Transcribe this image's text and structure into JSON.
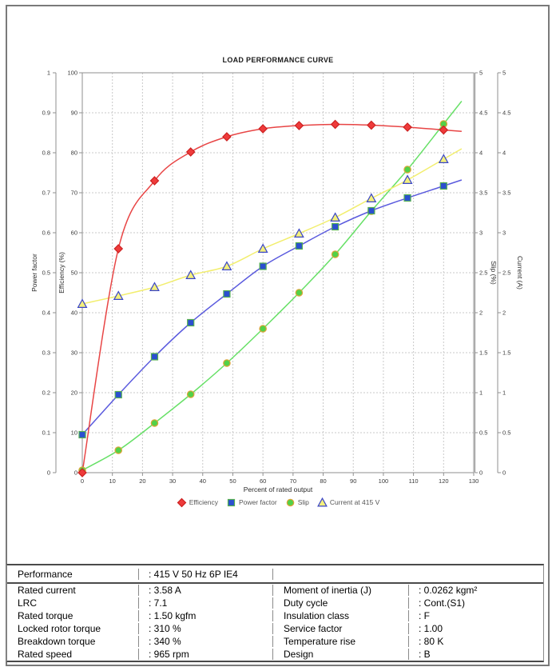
{
  "chart": {
    "title": "LOAD PERFORMANCE CURVE",
    "x_axis": {
      "label": "Percent of rated output",
      "min": 0,
      "max": 130,
      "tick_step": 10
    },
    "y_axes": {
      "power_factor": {
        "label": "Power factor",
        "min": 0,
        "max": 1,
        "tick_step": 0.1,
        "side": "outer-left"
      },
      "efficiency": {
        "label": "Efficiency (%)",
        "min": 0,
        "max": 100,
        "tick_step": 10,
        "side": "left"
      },
      "slip": {
        "label": "Slip (%)",
        "min": 0,
        "max": 5,
        "tick_step": 0.5,
        "side": "right"
      },
      "current": {
        "label": "Current (A)",
        "min": 0,
        "max": 5,
        "tick_step": 0.5,
        "side": "outer-right"
      }
    },
    "grid": "dashed",
    "legend_position": "bottom-center"
  },
  "chart_data": {
    "type": "line",
    "title": "LOAD PERFORMANCE CURVE",
    "xlabel": "Percent of rated output",
    "xlim": [
      0,
      130
    ],
    "x": [
      0,
      12,
      24,
      36,
      48,
      60,
      72,
      84,
      96,
      108,
      120
    ],
    "series": [
      {
        "name": "Efficiency",
        "axis": "efficiency",
        "axis_max": 100,
        "marker": "diamond",
        "line_color": "#e84545",
        "marker_fill": "#ee3b3b",
        "marker_stroke": "#cc2020",
        "values": [
          0,
          56,
          73,
          80.2,
          84,
          86,
          86.8,
          87.1,
          86.9,
          86.4,
          85.7
        ]
      },
      {
        "name": "Power factor",
        "axis": "power_factor",
        "axis_max": 1,
        "marker": "square",
        "line_color": "#5a5ade",
        "marker_fill": "#2b4fd0",
        "marker_stroke": "#55b050",
        "values": [
          0.095,
          0.195,
          0.29,
          0.375,
          0.447,
          0.516,
          0.567,
          0.615,
          0.655,
          0.687,
          0.717
        ]
      },
      {
        "name": "Slip",
        "axis": "slip",
        "axis_max": 5,
        "marker": "circle",
        "line_color": "#66e066",
        "marker_fill": "#52d148",
        "marker_stroke": "#e0a438",
        "values": [
          0.03,
          0.28,
          0.62,
          0.98,
          1.37,
          1.8,
          2.25,
          2.73,
          3.27,
          3.79,
          4.36
        ]
      },
      {
        "name": "Current at 415 V",
        "axis": "current",
        "axis_max": 5,
        "marker": "triangle",
        "line_color": "#f2ee6e",
        "marker_fill": "#f4f07c",
        "marker_stroke": "#3a46c8",
        "values": [
          2.11,
          2.21,
          2.32,
          2.47,
          2.58,
          2.8,
          2.99,
          3.19,
          3.43,
          3.66,
          3.92
        ]
      }
    ]
  },
  "table": {
    "performance_row": {
      "label": "Performance",
      "value": ": 415 V 50 Hz 6P IE4"
    },
    "rows": [
      {
        "l1": "Rated current",
        "v1": ": 3.58 A",
        "l2": "Moment of inertia (J)",
        "v2": ": 0.0262 kgm²"
      },
      {
        "l1": "LRC",
        "v1": ": 7.1",
        "l2": "Duty cycle",
        "v2": ": Cont.(S1)"
      },
      {
        "l1": "Rated torque",
        "v1": ": 1.50 kgfm",
        "l2": "Insulation class",
        "v2": ": F"
      },
      {
        "l1": "Locked rotor torque",
        "v1": ": 310 %",
        "l2": "Service factor",
        "v2": ": 1.00"
      },
      {
        "l1": "Breakdown torque",
        "v1": ": 340 %",
        "l2": "Temperature rise",
        "v2": ": 80 K"
      },
      {
        "l1": "Rated speed",
        "v1": ": 965 rpm",
        "l2": "Design",
        "v2": ": B"
      }
    ]
  }
}
